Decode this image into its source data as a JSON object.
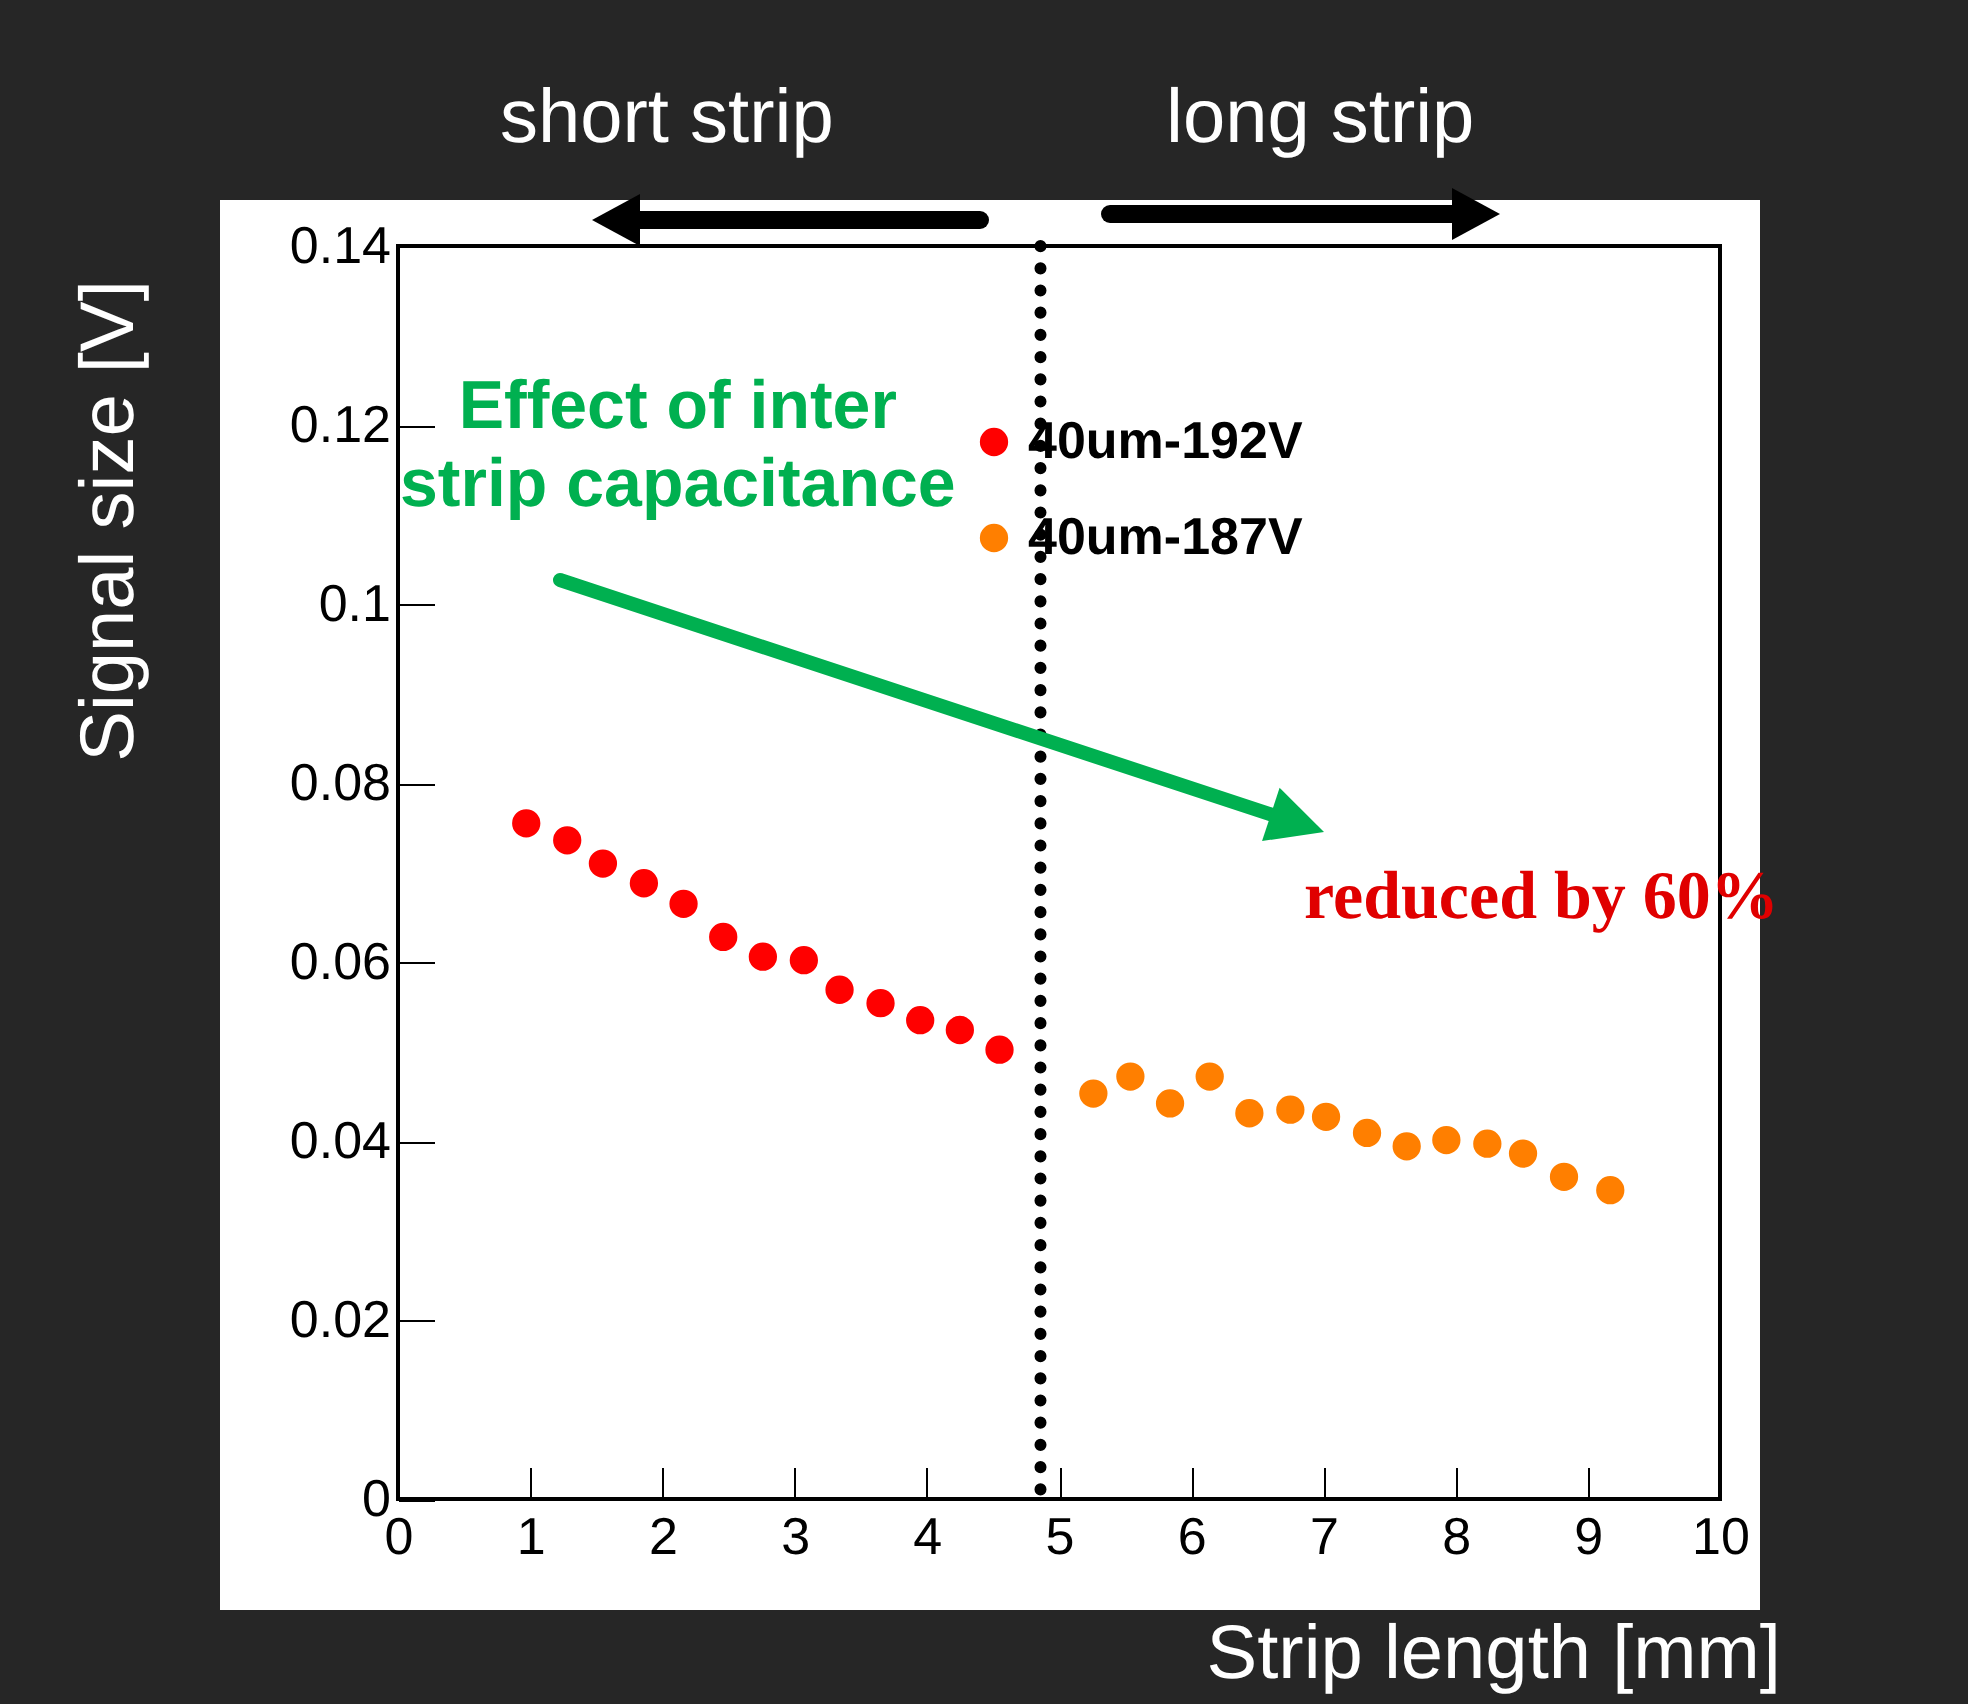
{
  "chart_data": {
    "type": "scatter",
    "xlabel": "Strip length [mm]",
    "ylabel": "Signal size [V]",
    "xlim": [
      0,
      10
    ],
    "xticks": [
      0,
      1,
      2,
      3,
      4,
      5,
      6,
      7,
      8,
      9,
      10
    ],
    "ylim": [
      0,
      0.14
    ],
    "yticks": [
      0,
      0.02,
      0.04,
      0.06,
      0.08,
      0.1,
      0.12,
      0.14
    ],
    "grid": false,
    "legend": "top right",
    "marker": "circle",
    "series": [
      {
        "name": "40um-192V",
        "color": "#ff0000",
        "x": [
          0.97,
          1.28,
          1.55,
          1.86,
          2.16,
          2.46,
          2.76,
          3.07,
          3.34,
          3.65,
          3.95,
          4.25,
          4.55
        ],
        "values": [
          0.0755,
          0.0736,
          0.071,
          0.0688,
          0.0665,
          0.0628,
          0.0606,
          0.0602,
          0.0569,
          0.0554,
          0.0535,
          0.0524,
          0.0502
        ]
      },
      {
        "name": "40um-187V",
        "color": "#ff7f00",
        "x": [
          5.26,
          5.54,
          5.84,
          6.14,
          6.44,
          6.75,
          7.02,
          7.33,
          7.63,
          7.93,
          8.24,
          8.51,
          8.82,
          9.17
        ],
        "values": [
          0.0453,
          0.0472,
          0.0442,
          0.0472,
          0.0431,
          0.0435,
          0.0427,
          0.0409,
          0.0394,
          0.0401,
          0.0397,
          0.0386,
          0.036,
          0.0345
        ]
      }
    ],
    "ref_lines": [
      {
        "axis": "x",
        "value": 4.86,
        "color": "#000000",
        "line_style": "dotted"
      }
    ],
    "annotations": [
      "short strip",
      "long strip",
      "Effect of inter\nstrip capacitance",
      "reduced by 60%"
    ]
  }
}
